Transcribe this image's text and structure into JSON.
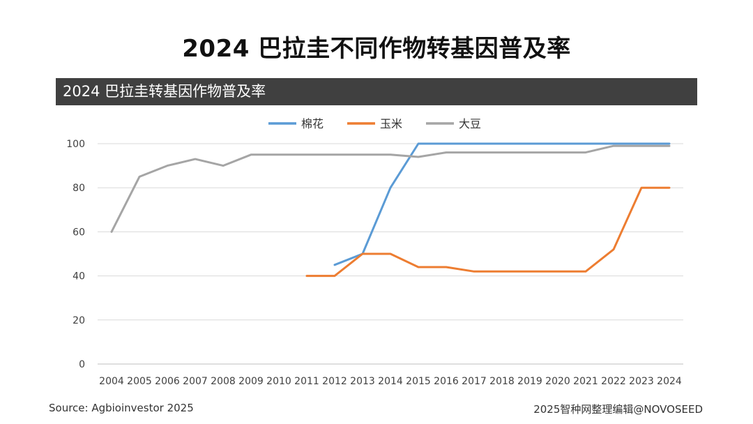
{
  "page": {
    "title": "2024 巴拉圭不同作物转基因普及率",
    "source": "Source: Agbioinvestor 2025",
    "credit": "2025智种网整理编辑@NOVOSEED"
  },
  "chart_data": {
    "type": "line",
    "title": "2024 巴拉圭转基因作物普及率",
    "xlabel": "",
    "ylabel": "",
    "x": [
      2004,
      2005,
      2006,
      2007,
      2008,
      2009,
      2010,
      2011,
      2012,
      2013,
      2014,
      2015,
      2016,
      2017,
      2018,
      2019,
      2020,
      2021,
      2022,
      2023,
      2024
    ],
    "ylim": [
      0,
      100
    ],
    "yticks": [
      0,
      20,
      40,
      60,
      80,
      100
    ],
    "grid": true,
    "legend_position": "top",
    "series": [
      {
        "name": "棉花",
        "color": "#5B9BD5",
        "values": [
          null,
          null,
          null,
          null,
          null,
          null,
          null,
          null,
          45,
          50,
          80,
          100,
          100,
          100,
          100,
          100,
          100,
          100,
          100,
          100,
          100
        ]
      },
      {
        "name": "玉米",
        "color": "#ED7D31",
        "values": [
          null,
          null,
          null,
          null,
          null,
          null,
          null,
          40,
          40,
          50,
          50,
          44,
          44,
          42,
          42,
          42,
          42,
          42,
          52,
          80,
          80
        ]
      },
      {
        "name": "大豆",
        "color": "#A5A5A5",
        "values": [
          60,
          85,
          90,
          93,
          90,
          95,
          95,
          95,
          95,
          95,
          95,
          94,
          96,
          96,
          96,
          96,
          96,
          96,
          99,
          99,
          99
        ]
      }
    ]
  }
}
